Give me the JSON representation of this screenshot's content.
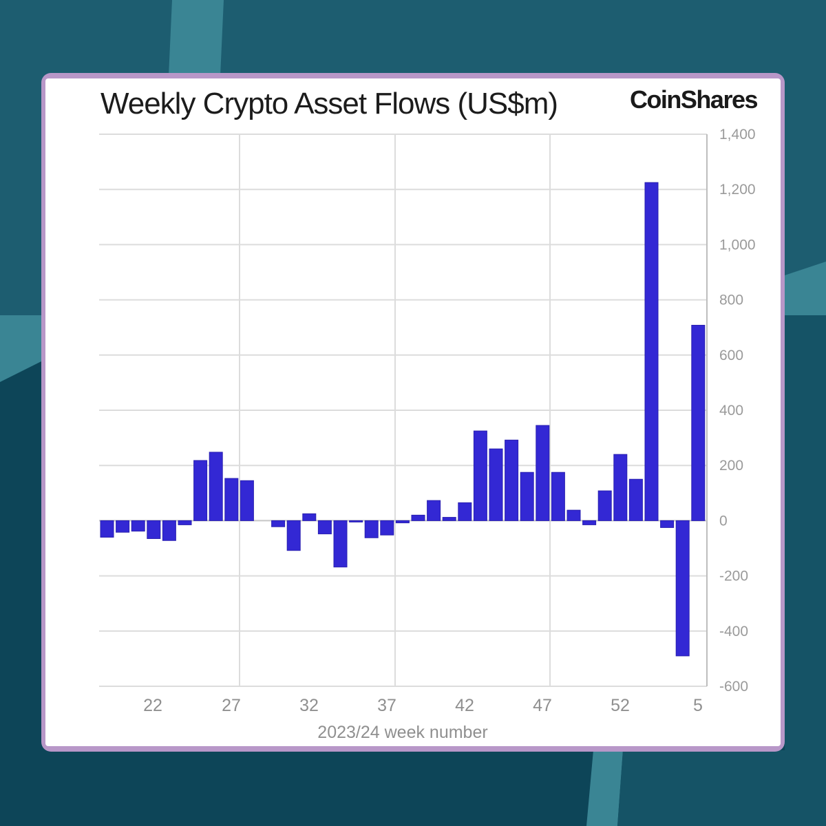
{
  "header": {
    "title": "Weekly Crypto Asset Flows (US$m)",
    "brand": "CoinShares"
  },
  "colors": {
    "bar": "#3328d4",
    "frame": "#b897c8",
    "background_top": "#1d5d70",
    "background_bottom": "#0d4558",
    "stripe": "#3a8594"
  },
  "chart_data": {
    "type": "bar",
    "title": "Weekly Crypto Asset Flows (US$m)",
    "xlabel": "2023/24 week number",
    "ylabel": "US$m",
    "ylim": [
      -600,
      1400
    ],
    "yticks": [
      1400,
      1200,
      1000,
      800,
      600,
      400,
      200,
      0,
      -200,
      -400,
      -600
    ],
    "ytick_labels": [
      "1,400",
      "1,200",
      "1,000",
      "800",
      "600",
      "400",
      "200",
      "0",
      "-200",
      "-400",
      "-600"
    ],
    "xtick_labels": [
      "22",
      "27",
      "32",
      "37",
      "42",
      "47",
      "52",
      "5"
    ],
    "grid": true,
    "y_axis_position": "right",
    "legend": "none",
    "categories": [
      "19",
      "20",
      "21",
      "22",
      "23",
      "24",
      "25",
      "26",
      "27",
      "28",
      "29",
      "30",
      "31",
      "32",
      "33",
      "34",
      "35",
      "36",
      "37",
      "38",
      "39",
      "40",
      "41",
      "42",
      "43",
      "44",
      "45",
      "46",
      "47",
      "48",
      "49",
      "50",
      "51",
      "52",
      "1",
      "2",
      "3",
      "4",
      "5"
    ],
    "values": [
      -60,
      -42,
      -38,
      -65,
      -72,
      -15,
      218,
      248,
      153,
      145,
      0,
      -22,
      -108,
      25,
      -48,
      -168,
      -5,
      -62,
      -52,
      -8,
      20,
      73,
      12,
      65,
      325,
      260,
      292,
      175,
      345,
      175,
      38,
      -15,
      108,
      240,
      150,
      1225,
      -25,
      -490,
      708
    ]
  }
}
